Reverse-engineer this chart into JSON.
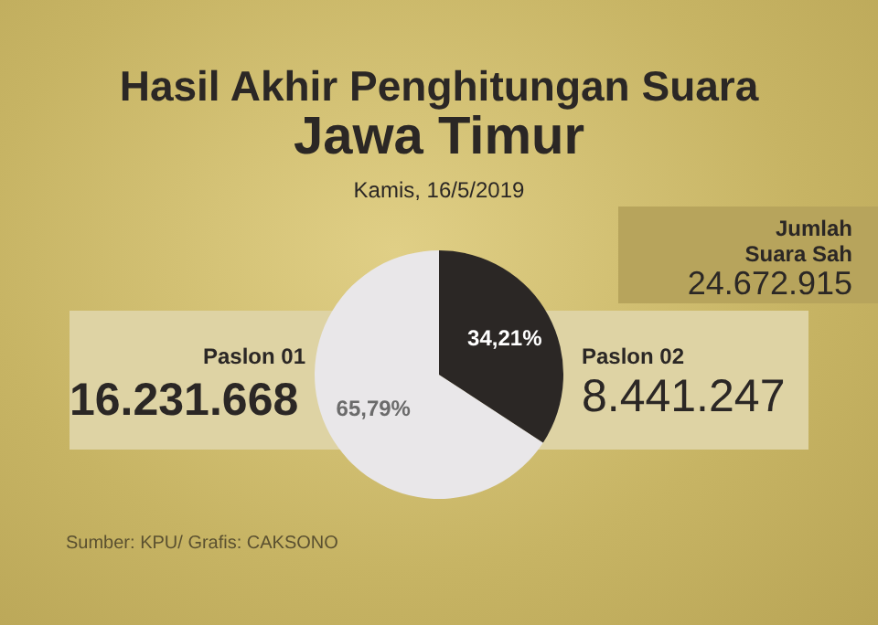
{
  "chart_data": {
    "type": "pie",
    "title": "Hasil Akhir Penghitungan Suara",
    "subtitle": "Jawa Timur",
    "categories": [
      "Paslon 01",
      "Paslon 02"
    ],
    "values": [
      65.79,
      34.21
    ],
    "colors": [
      "#e9e7e9",
      "#2b2725"
    ],
    "value_labels": [
      "65,79%",
      "34,21%"
    ],
    "legend": false,
    "annotations": [
      "Kamis, 16/5/2019",
      "16.231.668",
      "8.441.247",
      "Jumlah",
      "Suara Sah",
      "24.672.915",
      "Sumber: KPU/ Grafis: CAKSONO"
    ]
  }
}
